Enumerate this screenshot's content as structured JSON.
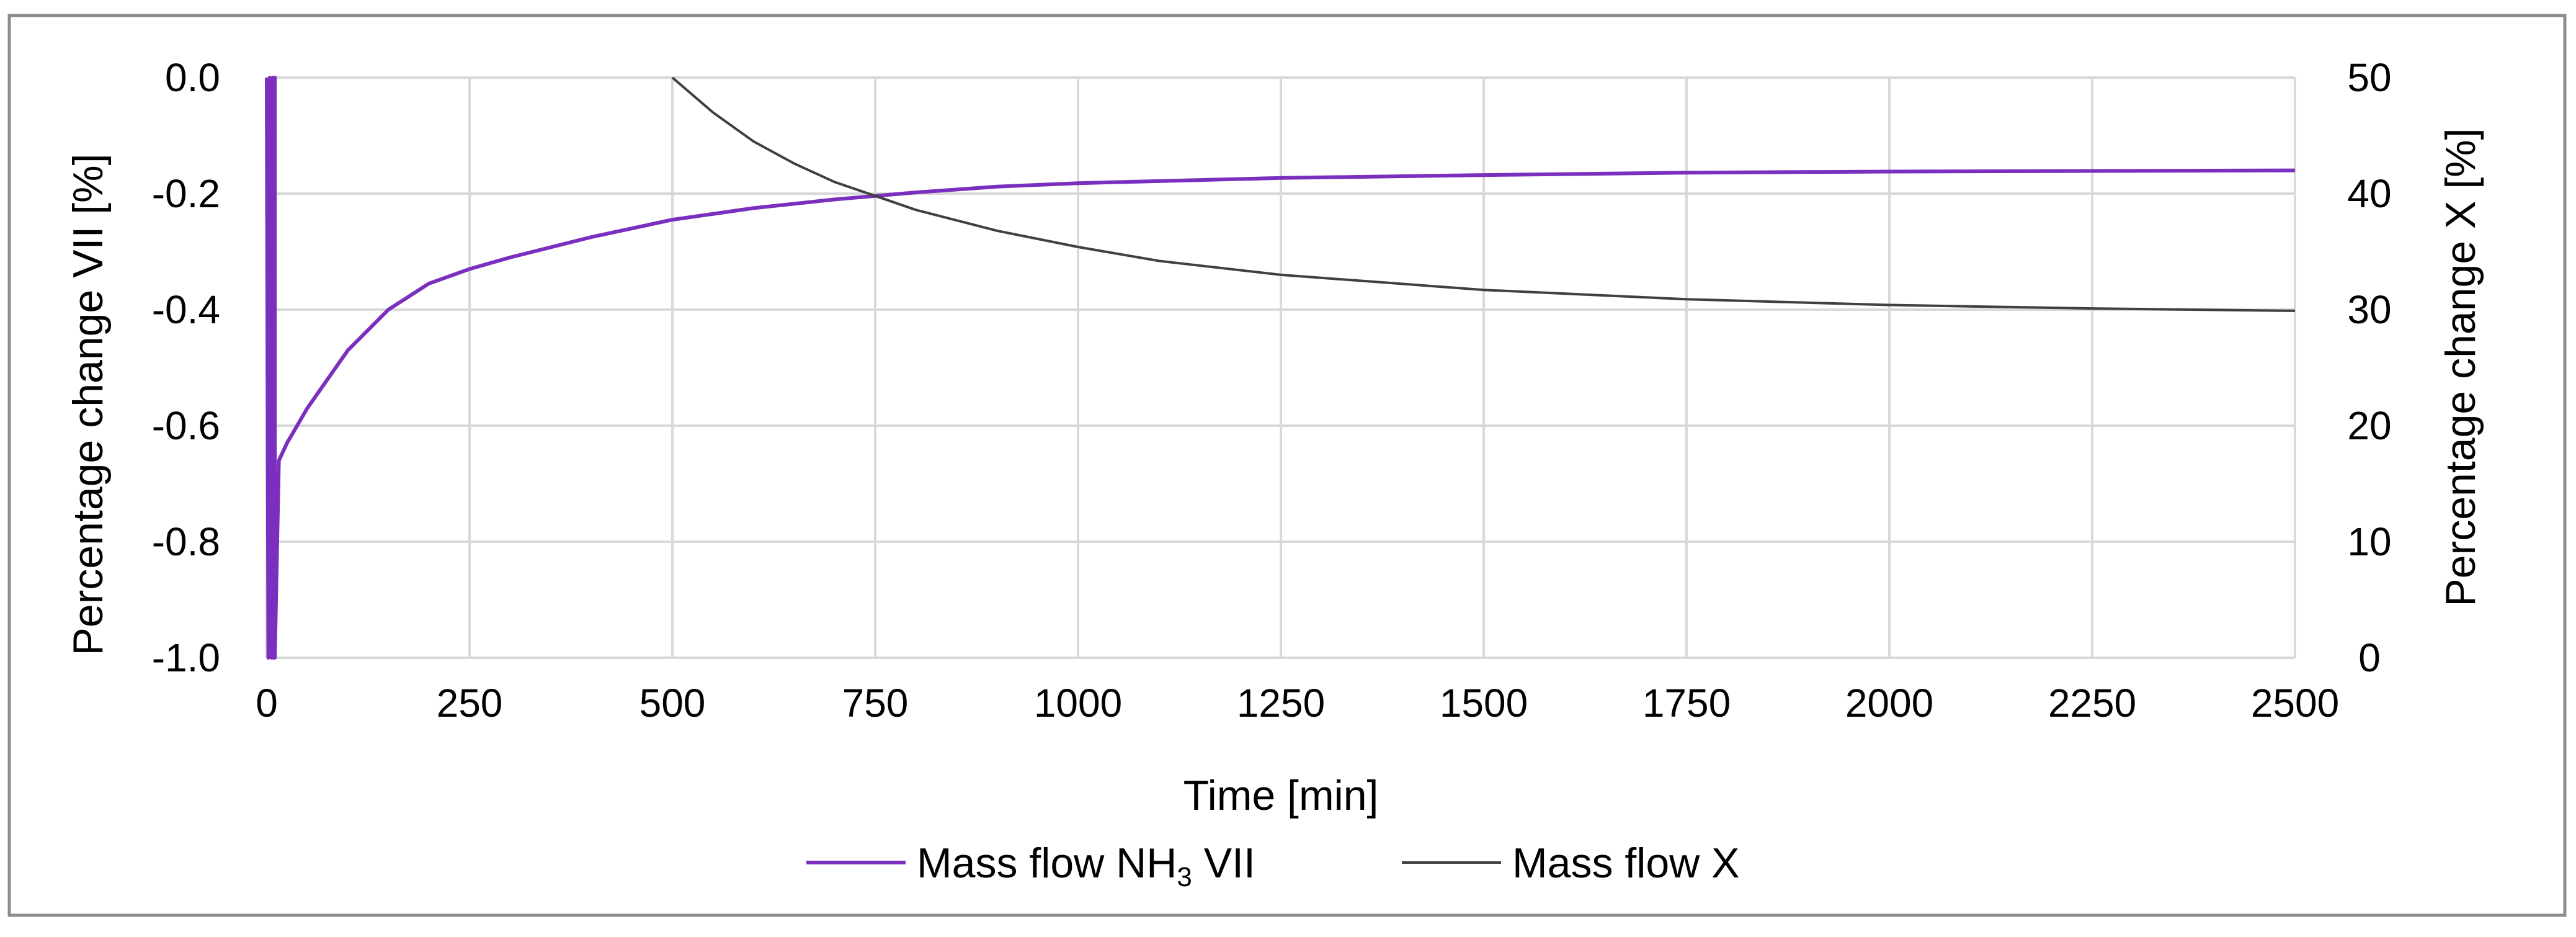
{
  "chart_data": {
    "type": "line",
    "title": "",
    "xlabel": "Time [min]",
    "ylabel_left": "Percentage change VII [%]",
    "ylabel_right": "Percentage change X [%]",
    "xlim": [
      0,
      2500
    ],
    "ylim_left": [
      -1.0,
      0.0
    ],
    "ylim_right": [
      0,
      50
    ],
    "x_ticks": [
      "0",
      "250",
      "500",
      "750",
      "1000",
      "1250",
      "1500",
      "1750",
      "2000",
      "2250",
      "2500"
    ],
    "y_left_ticks": [
      "0.0",
      "-0.2",
      "-0.4",
      "-0.6",
      "-0.8",
      "-1.0"
    ],
    "y_right_ticks": [
      "50",
      "40",
      "30",
      "20",
      "10",
      "0"
    ],
    "grid": true,
    "legend_position": "bottom",
    "series": [
      {
        "name": "Mass flow NH3 VII",
        "legend_main": "Mass flow NH",
        "legend_sub": "3",
        "legend_tail": " VII",
        "axis": "left",
        "color": "#7B2FBE",
        "x": [
          0,
          2,
          4,
          6,
          8,
          8,
          10,
          10,
          15,
          25,
          50,
          75,
          100,
          150,
          200,
          250,
          300,
          400,
          500,
          600,
          700,
          800,
          900,
          1000,
          1250,
          1500,
          1750,
          2000,
          2250,
          2500
        ],
        "y": [
          0.0,
          -1.0,
          0.0,
          -1.0,
          0.0,
          -1.0,
          0.0,
          -1.0,
          -0.66,
          -0.63,
          -0.57,
          -0.52,
          -0.47,
          -0.4,
          -0.355,
          -0.33,
          -0.31,
          -0.275,
          -0.245,
          -0.225,
          -0.21,
          -0.198,
          -0.188,
          -0.182,
          -0.173,
          -0.168,
          -0.164,
          -0.162,
          -0.161,
          -0.16
        ]
      },
      {
        "name": "Mass flow X",
        "legend_main": "Mass flow X",
        "axis": "right",
        "color": "#404040",
        "x": [
          500,
          550,
          600,
          650,
          700,
          750,
          800,
          900,
          1000,
          1100,
          1250,
          1500,
          1750,
          2000,
          2250,
          2500
        ],
        "y": [
          50,
          47.0,
          44.5,
          42.6,
          41.0,
          39.8,
          38.6,
          36.8,
          35.4,
          34.2,
          33.0,
          31.7,
          30.9,
          30.4,
          30.1,
          29.9
        ]
      }
    ]
  }
}
